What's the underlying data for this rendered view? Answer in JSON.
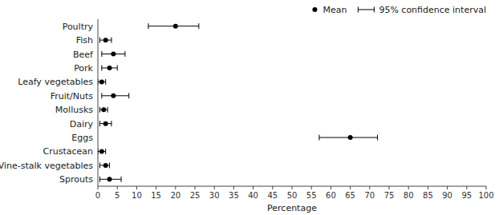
{
  "chart_data": {
    "type": "errorbar",
    "orientation": "horizontal",
    "categories": [
      "Poultry",
      "Fish",
      "Beef",
      "Pork",
      "Leafy vegetables",
      "Fruit/Nuts",
      "Mollusks",
      "Dairy",
      "Eggs",
      "Crustacean",
      "Vine-stalk vegetables",
      "Sprouts"
    ],
    "series": [
      {
        "name": "Mean",
        "interval_name": "95% confidence interval",
        "color": "black",
        "marker": "circle",
        "values": [
          20,
          2,
          4,
          3,
          1,
          4,
          1.5,
          2,
          65,
          1,
          2,
          3
        ],
        "ci_low": [
          13,
          0.5,
          1,
          1,
          0,
          1,
          0.5,
          0.5,
          57,
          0,
          0.5,
          0.5
        ],
        "ci_high": [
          26,
          3.5,
          7,
          5,
          2,
          8,
          2.5,
          3.5,
          72,
          2,
          3,
          6
        ]
      }
    ],
    "xlabel": "Percentage",
    "xlim": [
      0,
      100
    ],
    "xticks": [
      0,
      5,
      10,
      15,
      20,
      25,
      30,
      35,
      40,
      45,
      50,
      55,
      60,
      65,
      70,
      75,
      80,
      85,
      90,
      95,
      100
    ],
    "grid": false,
    "legend": "upper-right"
  }
}
